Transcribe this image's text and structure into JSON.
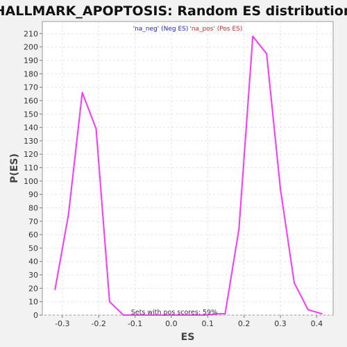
{
  "chart_data": {
    "type": "line",
    "title": "HALLMARK_APOPTOSIS: Random ES distribution",
    "xlabel": "ES",
    "ylabel": "P(ES)",
    "xlim": [
      -0.355,
      0.445
    ],
    "ylim": [
      0,
      219
    ],
    "x_ticks": [
      -0.3,
      -0.2,
      -0.1,
      0.0,
      0.1,
      0.2,
      0.3,
      0.4
    ],
    "x_tick_labels": [
      "-0.3",
      "-0.2",
      "-0.1",
      "0.0",
      "0.1",
      "0.2",
      "0.3",
      "0.4"
    ],
    "y_ticks": [
      0,
      10,
      20,
      30,
      40,
      50,
      60,
      70,
      80,
      90,
      100,
      110,
      120,
      130,
      140,
      150,
      160,
      170,
      180,
      190,
      200,
      210
    ],
    "y_tick_labels": [
      "0",
      "10",
      "20",
      "30",
      "40",
      "50",
      "60",
      "70",
      "80",
      "90",
      "100",
      "110",
      "120",
      "130",
      "140",
      "150",
      "160",
      "170",
      "180",
      "190",
      "200",
      "210"
    ],
    "grid": true,
    "legend": {
      "placement": "top-center",
      "entries": [
        {
          "text": "'na_neg' (Neg ES)",
          "color": "#2222cc"
        },
        {
          "text": "'na_pos' (Pos ES)",
          "color": "#dd2222"
        }
      ]
    },
    "annotation": "Sets with pos scores: 59%",
    "series": [
      {
        "color": "#ff33ff",
        "x": [
          -0.32,
          -0.283,
          -0.245,
          -0.207,
          -0.17,
          -0.132,
          -0.095,
          -0.057,
          -0.02,
          0.018,
          0.055,
          0.093,
          0.13,
          0.148,
          0.186,
          0.224,
          0.262,
          0.3,
          0.338,
          0.376,
          0.414
        ],
        "y": [
          19,
          75,
          166,
          139,
          10,
          0,
          0,
          0,
          0,
          0,
          0,
          0,
          1,
          1,
          64,
          208,
          195,
          94,
          24,
          4,
          1
        ]
      }
    ]
  }
}
